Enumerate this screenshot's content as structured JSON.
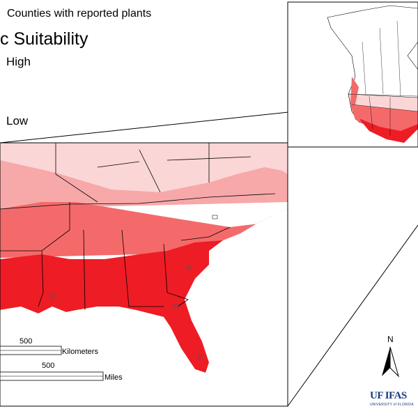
{
  "legend": {
    "counties_label": "Counties with reported plants",
    "title": "c Suitability",
    "high_label": "High",
    "low_label": "Low"
  },
  "scale_bar": {
    "km_value": "500",
    "km_unit": "Kilometers",
    "mi_value": "500",
    "mi_unit": "Miles"
  },
  "north_arrow": {
    "label": "N"
  },
  "logo": {
    "text": "UF IFAS",
    "subtext": "UNIVERSITY of FLORIDA"
  },
  "colors": {
    "suitability_high": "#ee1c24",
    "suitability_mid_high": "#f46a6a",
    "suitability_mid_low": "#f7a8a8",
    "suitability_low": "#fbd6d6",
    "border": "#000000",
    "water": "#ffffff"
  }
}
